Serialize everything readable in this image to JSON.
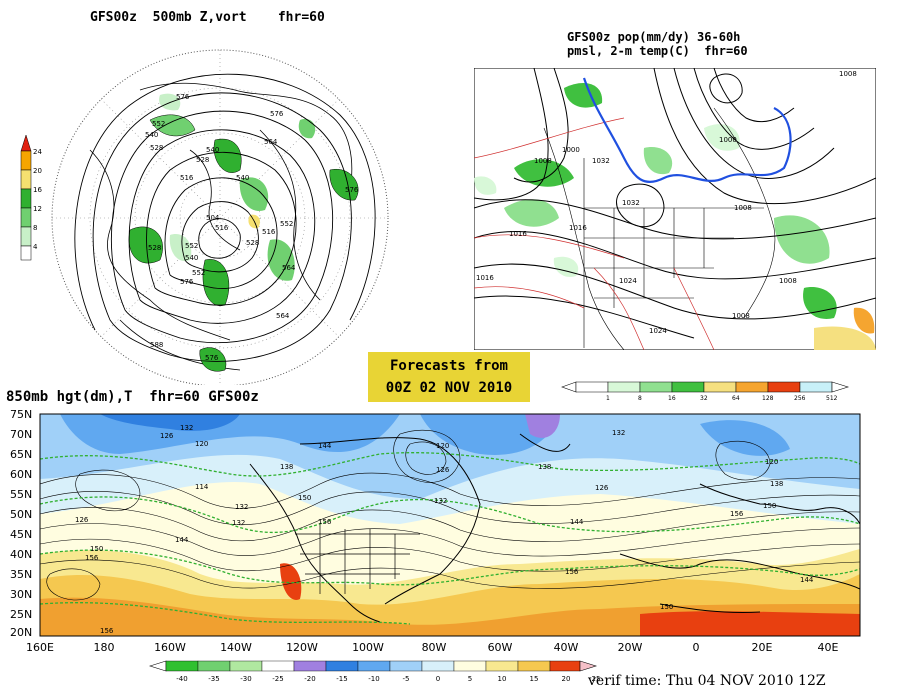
{
  "panels": {
    "vort": {
      "title": "GFS00z  500mb Z,vort    fhr=60",
      "contour_labels": [
        "576",
        "576",
        "564",
        "552",
        "540",
        "528",
        "516",
        "516",
        "540",
        "576",
        "504",
        "516",
        "552",
        "528",
        "552",
        "528",
        "540",
        "552",
        "564",
        "576",
        "576",
        "588",
        "564",
        "540",
        "528"
      ],
      "colorbar": [
        "24",
        "20",
        "16",
        "12",
        "8",
        "4"
      ],
      "colors": [
        "#e02010",
        "#f5a500",
        "#f5e070",
        "#30b030",
        "#70d070",
        "#c8f0c8"
      ]
    },
    "precip": {
      "title_line1": "GFS00z pop(mm/dy) 36-60h",
      "title_line2": "pmsl, 2-m temp(C)  fhr=60",
      "isobar_labels": [
        "1008",
        "1016",
        "1024",
        "1032",
        "1016",
        "1008",
        "1008",
        "1000",
        "1000",
        "1008",
        "1024",
        "1008",
        "1016",
        "1032"
      ],
      "colorbar": [
        "1",
        "8",
        "16",
        "32",
        "64",
        "128",
        "256",
        "512"
      ],
      "colors": [
        "#d8f8d8",
        "#90e090",
        "#40c040",
        "#f5e080",
        "#f5a530",
        "#e84010",
        "#c8f0f8"
      ]
    },
    "h850": {
      "title": "850mb hgt(dm),T  fhr=60 GFS00z",
      "lat_labels": [
        "75N",
        "70N",
        "65N",
        "60N",
        "55N",
        "50N",
        "45N",
        "40N",
        "35N",
        "30N",
        "25N",
        "20N"
      ],
      "lon_labels": [
        "160E",
        "180",
        "160W",
        "140W",
        "120W",
        "100W",
        "80W",
        "60W",
        "40W",
        "20W",
        "0",
        "20E",
        "40E"
      ],
      "contour_labels": [
        "132",
        "120",
        "126",
        "114",
        "126",
        "132",
        "144",
        "150",
        "156",
        "156",
        "132",
        "144",
        "138",
        "120",
        "126",
        "132",
        "150",
        "156",
        "144",
        "138",
        "132",
        "126",
        "120",
        "150",
        "156",
        "156",
        "150",
        "144",
        "138"
      ],
      "colorbar": [
        "-40",
        "-35",
        "-30",
        "-25",
        "-20",
        "-15",
        "-10",
        "-5",
        "0",
        "5",
        "10",
        "15",
        "20",
        "25"
      ],
      "colors": [
        "#30c030",
        "#70d070",
        "#b0e8a0",
        "#a080e0",
        "#3080e0",
        "#60a8f0",
        "#a0d0f8",
        "#d8f0fa",
        "#fffde0",
        "#f8e890",
        "#f5c850",
        "#f0a030",
        "#e84010"
      ]
    }
  },
  "forecast_box": {
    "line1": "Forecasts from",
    "line2": "00Z 02 NOV 2010"
  },
  "verif": "verif time: Thu 04 NOV 2010 12Z"
}
